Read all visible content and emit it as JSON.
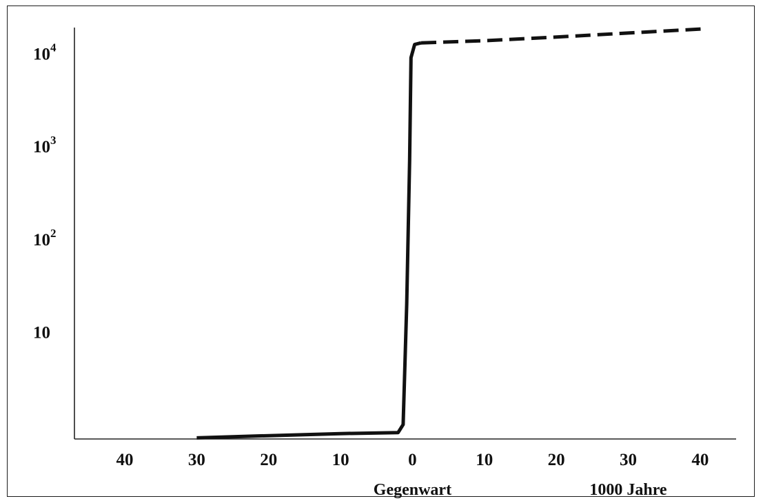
{
  "chart_data": {
    "type": "line",
    "title": "",
    "xlabel": "",
    "ylabel": "",
    "x_captions": [
      {
        "x": 0,
        "text": "Gegenwart"
      },
      {
        "x": 30,
        "text": "1000 Jahre"
      }
    ],
    "x_scale": "linear",
    "y_scale": "log",
    "xlim": [
      -47,
      45
    ],
    "ylim": [
      0.7,
      19000
    ],
    "grid": false,
    "x_ticks": [
      {
        "value": -40,
        "label": "40"
      },
      {
        "value": -30,
        "label": "30"
      },
      {
        "value": -20,
        "label": "20"
      },
      {
        "value": -10,
        "label": "10"
      },
      {
        "value": 0,
        "label": "0"
      },
      {
        "value": 10,
        "label": "10"
      },
      {
        "value": 20,
        "label": "20"
      },
      {
        "value": 30,
        "label": "30"
      },
      {
        "value": 40,
        "label": "40"
      }
    ],
    "y_ticks": [
      {
        "value": 10,
        "base": "10",
        "exp": ""
      },
      {
        "value": 100,
        "base": "10",
        "exp": "2"
      },
      {
        "value": 1000,
        "base": "10",
        "exp": "3"
      },
      {
        "value": 10000,
        "base": "10",
        "exp": "4"
      }
    ],
    "series": [
      {
        "style": "solid",
        "color": "#111111",
        "points": [
          [
            -30,
            0.72
          ],
          [
            -20,
            0.76
          ],
          [
            -10,
            0.8
          ],
          [
            -2,
            0.82
          ],
          [
            -1.3,
            1.0
          ],
          [
            -0.8,
            20
          ],
          [
            -0.4,
            700
          ],
          [
            -0.2,
            9000
          ],
          [
            0.3,
            12500
          ],
          [
            1.2,
            13000
          ]
        ]
      },
      {
        "style": "dashed",
        "color": "#111111",
        "points": [
          [
            1.2,
            13000
          ],
          [
            10,
            13700
          ],
          [
            20,
            15000
          ],
          [
            30,
            16600
          ],
          [
            41,
            18500
          ]
        ]
      }
    ]
  }
}
